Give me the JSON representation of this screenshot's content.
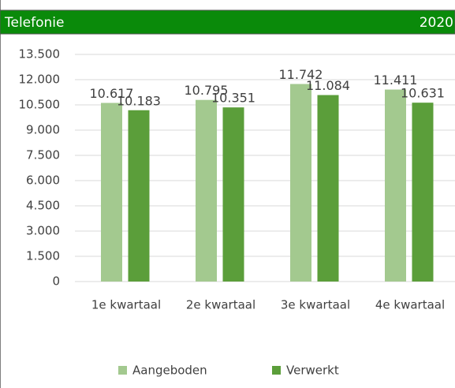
{
  "chart_data": {
    "type": "bar",
    "title": "Telefonie",
    "subtitle": "2020",
    "categories": [
      "1e kwartaal",
      "2e kwartaal",
      "3e kwartaal",
      "4e kwartaal"
    ],
    "series": [
      {
        "name": "Aangeboden",
        "color": "#a3c98f",
        "values": [
          10617,
          10795,
          11742,
          11411
        ],
        "value_labels": [
          "10.617",
          "10.795",
          "11.742",
          "11.411"
        ]
      },
      {
        "name": "Verwerkt",
        "color": "#5b9e3a",
        "values": [
          10183,
          10351,
          11084,
          10631
        ],
        "value_labels": [
          "10.183",
          "10.351",
          "11.084",
          "10.631"
        ]
      }
    ],
    "ylim": [
      0,
      13500
    ],
    "yticks": [
      0,
      {
        "value": 1500,
        "label": "1.500"
      },
      {
        "value": 3000,
        "label": "3.000"
      },
      {
        "value": 4500,
        "label": "4.500"
      },
      {
        "value": 6000,
        "label": "6.000"
      },
      {
        "value": 7500,
        "label": "7.500"
      },
      {
        "value": 9000,
        "label": "9.000"
      },
      {
        "value": 10500,
        "label": "10.500"
      },
      {
        "value": 12000,
        "label": "12.000"
      },
      {
        "value": 13500,
        "label": "13.500"
      }
    ],
    "grid": true,
    "legend": "bottom"
  }
}
